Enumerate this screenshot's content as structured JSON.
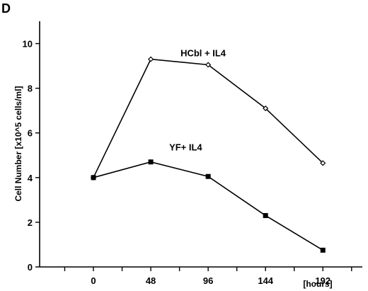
{
  "panel_label": "D",
  "chart_data": {
    "type": "line",
    "title": "",
    "xlabel": "[hours]",
    "ylabel": "Cell Number [x10^5 cells/ml]",
    "x": [
      0,
      48,
      96,
      144,
      192
    ],
    "x_tick_labels": [
      "0",
      "48",
      "96",
      "144",
      "192"
    ],
    "xlim": [
      -45,
      225
    ],
    "ylim": [
      0,
      11
    ],
    "y_ticks": [
      0,
      2,
      4,
      6,
      8,
      10
    ],
    "y_tick_labels": [
      "0",
      "2",
      "4",
      "6",
      "8",
      "10"
    ],
    "grid": false,
    "series": [
      {
        "name": "HCbl + IL4",
        "values": [
          4.0,
          9.3,
          9.05,
          7.1,
          4.65
        ],
        "marker": "open-diamond"
      },
      {
        "name": "YF+ IL4",
        "values": [
          4.0,
          4.7,
          4.05,
          2.3,
          0.75
        ],
        "marker": "filled-square"
      }
    ]
  }
}
